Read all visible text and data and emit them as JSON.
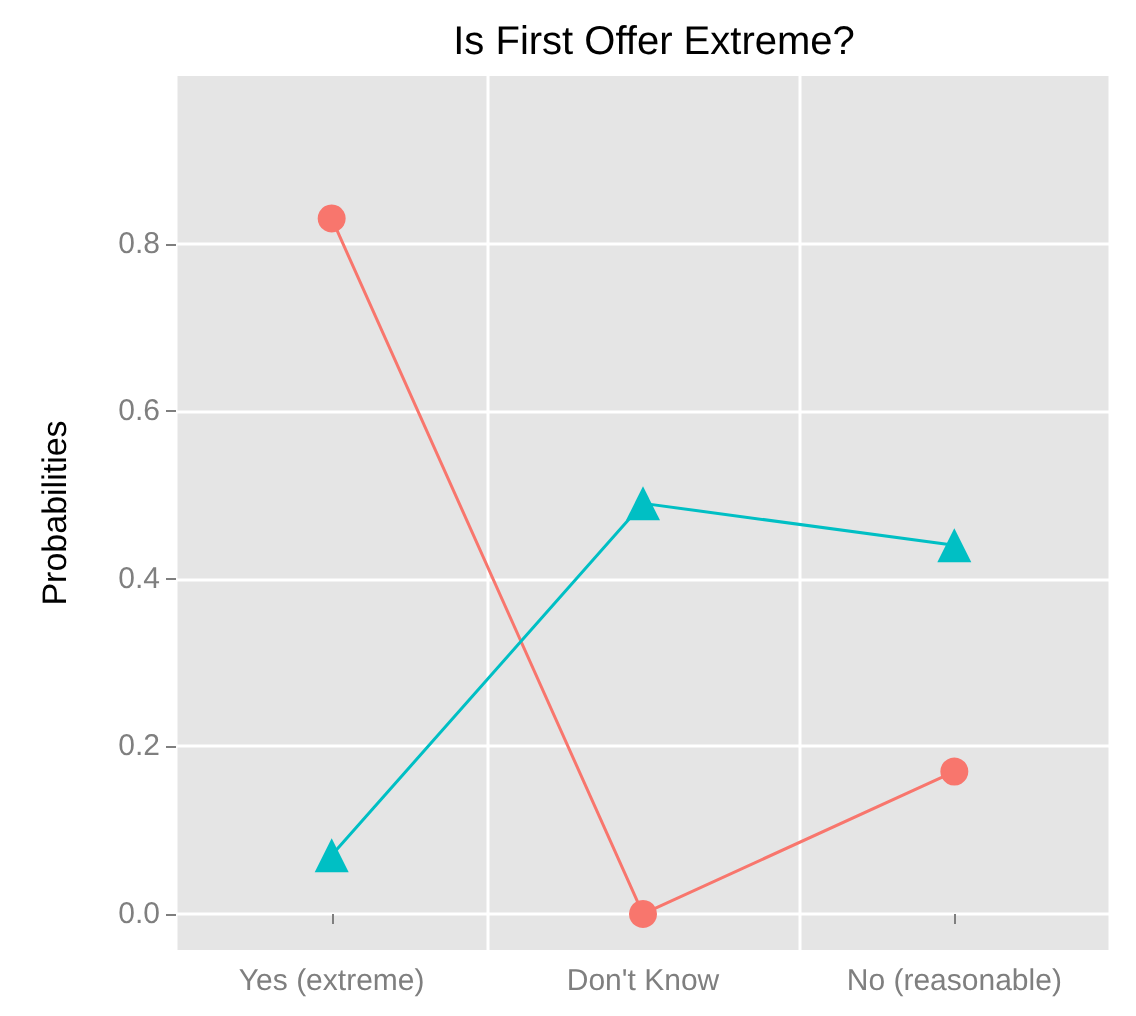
{
  "chart_data": {
    "type": "line",
    "title": "Is First Offer Extreme?",
    "ylabel": "Probabilities",
    "categories": [
      "Yes (extreme)",
      "Don't Know",
      "No (reasonable)"
    ],
    "series": [
      {
        "color": "#f8766d",
        "marker": "circle",
        "values": [
          0.83,
          0.0,
          0.17
        ]
      },
      {
        "color": "#00bfc4",
        "marker": "triangle",
        "values": [
          0.07,
          0.49,
          0.44
        ]
      }
    ],
    "ylim": [
      -0.043,
      1.0
    ],
    "yticks": [
      {
        "value": 0,
        "label": "0.0"
      },
      0.2,
      0.4,
      0.6,
      0.8
    ],
    "grid": true,
    "line_style": "solid"
  }
}
